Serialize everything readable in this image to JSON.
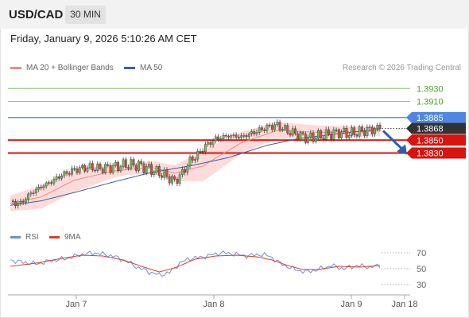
{
  "header": {
    "symbol": "USD/CAD",
    "timeframe": "30 MIN"
  },
  "datetime": "Friday, January 9, 2026 5:10:26 AM CET",
  "legend": {
    "ma20_label": "MA 20 + Bollinger Bands",
    "ma50_label": "MA 50"
  },
  "credit": "Research © 2026 Trading Central",
  "rsi_legend": {
    "rsi_label": "RSI",
    "ma_label": "9MA"
  },
  "colors": {
    "ma20": "#f08a84",
    "ma50": "#3b5ea8",
    "bollinger": "#fbd5d3",
    "resistance_green": "#8fc46a",
    "resistance_blue": "#4f86e6",
    "support_red": "#d9130f",
    "current": "#333333",
    "candle_up": "#6dbf5b",
    "candle_down": "#d64a3b",
    "rsi": "#6f8fd6",
    "rsi_ma": "#e03a2c"
  },
  "chart_data": [
    {
      "type": "candlestick",
      "title": "USD/CAD 30 MIN",
      "x_axis": {
        "ticks": [
          "Jan 7",
          "Jan 8",
          "Jan 9",
          "Jan 18"
        ]
      },
      "ylim": [
        1.371,
        1.395
      ],
      "levels": [
        {
          "value": 1.393,
          "label": "1.3930",
          "kind": "resistance",
          "color": "green"
        },
        {
          "value": 1.391,
          "label": "1.3910",
          "kind": "resistance",
          "color": "green"
        },
        {
          "value": 1.3885,
          "label": "1.3885",
          "kind": "resistance",
          "color": "blue"
        },
        {
          "value": 1.3868,
          "label": "1.3868",
          "kind": "current",
          "color": "dark"
        },
        {
          "value": 1.385,
          "label": "1.3850",
          "kind": "support",
          "color": "red"
        },
        {
          "value": 1.383,
          "label": "1.3830",
          "kind": "support",
          "color": "red"
        }
      ],
      "close_anchors": [
        [
          0,
          1.3753
        ],
        [
          4,
          1.3752
        ],
        [
          8,
          1.3768
        ],
        [
          12,
          1.3778
        ],
        [
          16,
          1.3786
        ],
        [
          20,
          1.3796
        ],
        [
          25,
          1.3804
        ],
        [
          30,
          1.3808
        ],
        [
          35,
          1.3806
        ],
        [
          40,
          1.3808
        ],
        [
          45,
          1.3812
        ],
        [
          50,
          1.3811
        ],
        [
          55,
          1.3804
        ],
        [
          60,
          1.3796
        ],
        [
          64,
          1.3786
        ],
        [
          67,
          1.3799
        ],
        [
          70,
          1.3818
        ],
        [
          73,
          1.3828
        ],
        [
          76,
          1.3841
        ],
        [
          80,
          1.3852
        ],
        [
          85,
          1.3857
        ],
        [
          90,
          1.3855
        ],
        [
          95,
          1.3862
        ],
        [
          100,
          1.387
        ],
        [
          104,
          1.3873
        ],
        [
          108,
          1.3864
        ],
        [
          112,
          1.3858
        ],
        [
          116,
          1.3853
        ],
        [
          120,
          1.3856
        ],
        [
          124,
          1.3859
        ],
        [
          128,
          1.3862
        ],
        [
          132,
          1.386
        ],
        [
          136,
          1.3863
        ],
        [
          140,
          1.3866
        ],
        [
          144,
          1.3868
        ]
      ],
      "ma20_anchors": [
        [
          0,
          1.3752
        ],
        [
          12,
          1.3762
        ],
        [
          25,
          1.3788
        ],
        [
          40,
          1.3802
        ],
        [
          55,
          1.3808
        ],
        [
          64,
          1.3799
        ],
        [
          75,
          1.381
        ],
        [
          90,
          1.3846
        ],
        [
          104,
          1.3865
        ],
        [
          120,
          1.3862
        ],
        [
          144,
          1.3864
        ]
      ],
      "band_width_anchors": [
        [
          0,
          0.0012
        ],
        [
          12,
          0.0018
        ],
        [
          25,
          0.0018
        ],
        [
          45,
          0.0008
        ],
        [
          64,
          0.0012
        ],
        [
          75,
          0.0024
        ],
        [
          95,
          0.0015
        ],
        [
          110,
          0.0012
        ],
        [
          144,
          0.0007
        ]
      ],
      "ma50_anchors": [
        [
          0,
          1.3749
        ],
        [
          12,
          1.3756
        ],
        [
          25,
          1.3769
        ],
        [
          40,
          1.3785
        ],
        [
          55,
          1.38
        ],
        [
          70,
          1.381
        ],
        [
          85,
          1.3823
        ],
        [
          100,
          1.3842
        ],
        [
          112,
          1.3852
        ],
        [
          128,
          1.386
        ],
        [
          144,
          1.3867
        ]
      ],
      "forecast": {
        "from": 1.3868,
        "to": 1.383
      }
    },
    {
      "type": "line",
      "title": "RSI",
      "ylim": [
        20,
        80
      ],
      "yticks": [
        70,
        50,
        30
      ],
      "series": [
        {
          "name": "RSI",
          "anchors": [
            [
              0,
              61
            ],
            [
              5,
              58
            ],
            [
              10,
              56
            ],
            [
              16,
              60
            ],
            [
              22,
              63
            ],
            [
              28,
              68
            ],
            [
              33,
              70
            ],
            [
              40,
              66
            ],
            [
              46,
              58
            ],
            [
              50,
              51
            ],
            [
              54,
              46
            ],
            [
              58,
              42
            ],
            [
              62,
              45
            ],
            [
              66,
              57
            ],
            [
              70,
              63
            ],
            [
              74,
              64
            ],
            [
              78,
              67
            ],
            [
              82,
              70
            ],
            [
              86,
              69
            ],
            [
              92,
              66
            ],
            [
              97,
              68
            ],
            [
              101,
              66
            ],
            [
              105,
              57
            ],
            [
              110,
              50
            ],
            [
              115,
              46
            ],
            [
              120,
              49
            ],
            [
              125,
              54
            ],
            [
              130,
              50
            ],
            [
              135,
              54
            ],
            [
              140,
              52
            ],
            [
              144,
              54
            ]
          ]
        },
        {
          "name": "9MA",
          "anchors": [
            [
              0,
              53
            ],
            [
              10,
              57
            ],
            [
              20,
              63
            ],
            [
              28,
              67
            ],
            [
              36,
              66
            ],
            [
              44,
              61
            ],
            [
              52,
              52
            ],
            [
              58,
              46
            ],
            [
              64,
              51
            ],
            [
              72,
              62
            ],
            [
              80,
              66
            ],
            [
              88,
              67
            ],
            [
              96,
              65
            ],
            [
              102,
              61
            ],
            [
              108,
              54
            ],
            [
              114,
              49
            ],
            [
              120,
              49
            ],
            [
              128,
              53
            ],
            [
              136,
              52
            ],
            [
              144,
              54
            ]
          ]
        }
      ]
    }
  ]
}
